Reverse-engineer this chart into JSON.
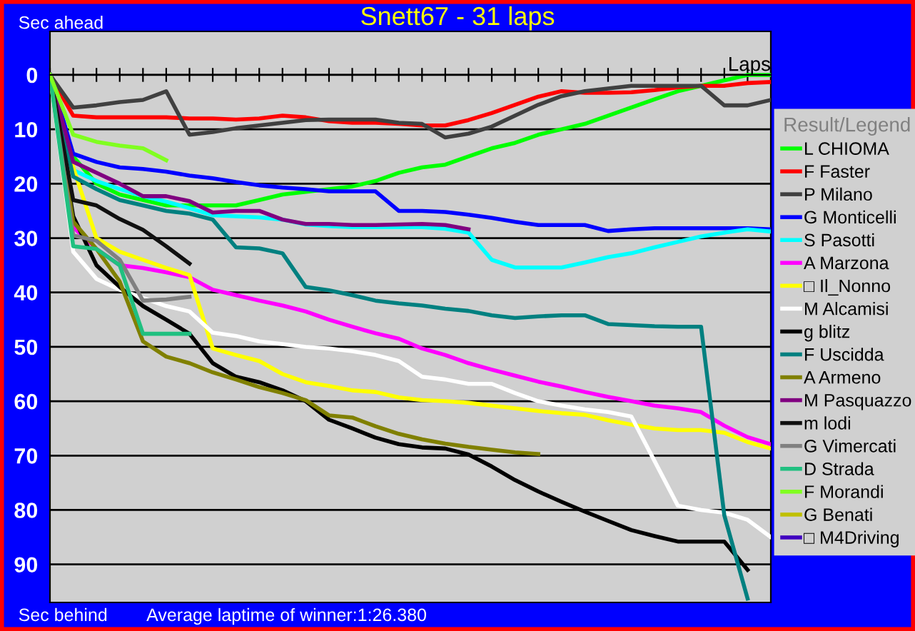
{
  "chart_data": {
    "type": "line",
    "title": "Snett67 - 31 laps",
    "xlabel": "Laps",
    "ylabel": "Sec ahead",
    "legend_title": "Result/Legend",
    "annotations": [
      "Sec behind",
      "Average laptime of winner:1:26.380"
    ],
    "categories": [
      null,
      null,
      null,
      null,
      null,
      null,
      null,
      null,
      null,
      null,
      null,
      null,
      null,
      null,
      null,
      null,
      null,
      null,
      null,
      null,
      null,
      null,
      null,
      null,
      null,
      null,
      null,
      null,
      null,
      null,
      null,
      null
    ],
    "ylim": [
      97,
      -8
    ],
    "yticks": [
      0,
      10,
      20,
      30,
      40,
      50,
      60,
      70,
      80,
      90
    ],
    "grid": "y",
    "legend": "right",
    "marker": "none",
    "line_style": "solid",
    "series": [
      {
        "name": "L CHIOMA",
        "color": "#00ff00",
        "values": [
          0,
          15,
          20,
          22,
          23,
          24,
          24,
          24,
          24,
          23,
          22,
          21.5,
          21,
          20.5,
          19.5,
          18,
          17,
          16.5,
          15,
          13.5,
          12.5,
          11,
          10,
          9,
          7.5,
          6,
          4.5,
          3,
          2,
          1,
          0,
          0
        ]
      },
      {
        "name": "F Faster",
        "color": "#ff0000",
        "values": [
          0,
          7.5,
          7.8,
          7.8,
          7.8,
          7.8,
          8,
          8,
          8.2,
          8,
          7.5,
          7.8,
          8.5,
          8.8,
          8.8,
          9,
          9.3,
          9.3,
          8.3,
          7,
          5.5,
          4,
          3,
          3.3,
          3.3,
          3.2,
          2.8,
          2.3,
          2,
          2,
          1.5,
          1.3
        ]
      },
      {
        "name": "P Milano",
        "color": "#404040",
        "values": [
          0,
          6,
          5.6,
          5,
          4.6,
          3,
          11,
          10.5,
          9.8,
          9.3,
          8.8,
          8.3,
          8.2,
          8.2,
          8.2,
          8.8,
          9,
          11.5,
          10.8,
          9.5,
          7.5,
          5.5,
          3.9,
          3,
          2.5,
          2,
          2,
          2,
          2,
          5.6,
          5.6,
          4.6
        ]
      },
      {
        "name": "G Monticelli",
        "color": "#0000ff",
        "values": [
          0,
          14.5,
          16,
          17,
          17.3,
          17.8,
          18.5,
          19,
          19.7,
          20.3,
          20.7,
          21,
          21.4,
          21.4,
          21.4,
          25,
          25,
          25.2,
          25.7,
          26.3,
          27,
          27.6,
          27.6,
          27.6,
          28.7,
          28.4,
          28.2,
          28.2,
          28.2,
          28.2,
          28.2,
          28.4
        ]
      },
      {
        "name": "S Pasotti",
        "color": "#00ffff",
        "values": [
          0,
          17.5,
          19.5,
          21,
          22.3,
          23.3,
          24.5,
          25.8,
          26,
          26.2,
          26.6,
          27.5,
          27.8,
          28,
          28,
          28,
          28,
          28.3,
          29,
          34,
          35.4,
          35.4,
          35.4,
          34.5,
          33.5,
          32.8,
          31.7,
          30.7,
          29.7,
          29,
          28.4,
          28.8
        ]
      },
      {
        "name": "A Marzona",
        "color": "#ff00ff",
        "values": [
          0,
          28,
          32,
          35,
          35.5,
          36.3,
          37.2,
          39.5,
          40.5,
          41.5,
          42.4,
          43.5,
          45,
          46.3,
          47.5,
          48.5,
          50.3,
          51.5,
          53,
          54.2,
          55.3,
          56.4,
          57.3,
          58.3,
          59.2,
          60,
          60.8,
          61.3,
          62,
          64.5,
          66.6,
          67.9
        ]
      },
      {
        "name": "□ Il_Nonno",
        "color": "#ffff00",
        "values": [
          0,
          17,
          30,
          32.5,
          34,
          35.5,
          36.8,
          50.3,
          51.5,
          52.6,
          55,
          56.5,
          57.2,
          58,
          58.3,
          59.3,
          59.8,
          60,
          60.3,
          60.8,
          61.3,
          61.8,
          62.2,
          62.5,
          63.5,
          64.3,
          65,
          65.3,
          65.3,
          65.8,
          67.5,
          68.7
        ]
      },
      {
        "name": "M Alcamisi",
        "color": "#ffffff",
        "values": [
          0,
          32.5,
          37.5,
          39.5,
          41,
          42.5,
          43.5,
          47.4,
          48,
          49,
          49.5,
          50,
          50.3,
          50.8,
          51.5,
          52.6,
          55.5,
          56,
          56.8,
          56.8,
          58.5,
          60,
          60.8,
          61.5,
          62,
          62.8,
          71,
          79.2,
          80,
          80.5,
          81.8,
          85
        ]
      },
      {
        "name": "g blitz",
        "color": "#000000",
        "values": [
          0,
          26,
          35,
          39,
          42.5,
          45,
          47.6,
          53,
          55.5,
          56.5,
          58,
          60,
          63.4,
          65,
          66.7,
          67.9,
          68.5,
          68.7,
          69.8,
          72,
          74.5,
          76.6,
          78.5,
          80.3,
          82,
          83.7,
          84.8,
          85.8,
          85.8,
          85.8,
          91,
          null
        ]
      },
      {
        "name": "F Uscidda",
        "color": "#008080",
        "values": [
          0,
          18.7,
          21,
          23,
          24,
          25,
          25.5,
          26.6,
          31.7,
          31.9,
          32.8,
          39,
          39.6,
          40.5,
          41.5,
          42,
          42.4,
          43,
          43.4,
          44.2,
          44.7,
          44.4,
          44.2,
          44.2,
          45.8,
          46,
          46.2,
          46.3,
          46.3,
          81,
          96.3,
          null
        ]
      },
      {
        "name": "A Armeno",
        "color": "#808000",
        "values": [
          0,
          27,
          32,
          38,
          49,
          51.8,
          53,
          54.7,
          56,
          57.4,
          58.5,
          59.8,
          62.6,
          63,
          64.6,
          66,
          67,
          67.8,
          68.4,
          68.9,
          69.4,
          69.7,
          null,
          null,
          null,
          null,
          null,
          null,
          null,
          null,
          null,
          null
        ]
      },
      {
        "name": "M Pasquazzo",
        "color": "#800080",
        "values": [
          0,
          16,
          18,
          20,
          22.3,
          22.3,
          23.2,
          25.3,
          25,
          25,
          26.6,
          27.4,
          27.4,
          27.6,
          27.6,
          27.5,
          27.4,
          27.6,
          28.4,
          null,
          null,
          null,
          null,
          null,
          null,
          null,
          null,
          null,
          null,
          null,
          null,
          null
        ]
      },
      {
        "name": "m lodi",
        "color": "#101010",
        "values": [
          0,
          23,
          24,
          26.5,
          28.5,
          31.5,
          34.7,
          null,
          null,
          null,
          null,
          null,
          null,
          null,
          null,
          null,
          null,
          null,
          null,
          null,
          null,
          null,
          null,
          null,
          null,
          null,
          null,
          null,
          null,
          null,
          null,
          null
        ]
      },
      {
        "name": "G Vimercati",
        "color": "#808080",
        "values": [
          0,
          29.5,
          30.5,
          34,
          41.5,
          41.3,
          40.8,
          null,
          null,
          null,
          null,
          null,
          null,
          null,
          null,
          null,
          null,
          null,
          null,
          null,
          null,
          null,
          null,
          null,
          null,
          null,
          null,
          null,
          null,
          null,
          null,
          null
        ]
      },
      {
        "name": "D Strada",
        "color": "#20c080",
        "values": [
          0,
          31.5,
          32,
          35,
          47.6,
          47.6,
          47.6,
          null,
          null,
          null,
          null,
          null,
          null,
          null,
          null,
          null,
          null,
          null,
          null,
          null,
          null,
          null,
          null,
          null,
          null,
          null,
          null,
          null,
          null,
          null,
          null,
          null
        ]
      },
      {
        "name": "F Morandi",
        "color": "#80ff20",
        "values": [
          0,
          11,
          12.3,
          13,
          13.5,
          15.7,
          null,
          null,
          null,
          null,
          null,
          null,
          null,
          null,
          null,
          null,
          null,
          null,
          null,
          null,
          null,
          null,
          null,
          null,
          null,
          null,
          null,
          null,
          null,
          null,
          null,
          null
        ]
      },
      {
        "name": "G Benati",
        "color": "#c0c000",
        "values": [
          null,
          null,
          null,
          null,
          null,
          null,
          null,
          null,
          null,
          null,
          null,
          null,
          null,
          null,
          null,
          null,
          null,
          null,
          null,
          null,
          null,
          null,
          null,
          null,
          null,
          null,
          null,
          null,
          null,
          null,
          null,
          null
        ]
      },
      {
        "name": "□ M4Driving",
        "color": "#4000c0",
        "values": [
          null,
          null,
          null,
          null,
          null,
          null,
          null,
          null,
          null,
          null,
          null,
          null,
          null,
          null,
          null,
          null,
          null,
          null,
          null,
          null,
          null,
          null,
          null,
          null,
          null,
          null,
          null,
          null,
          null,
          null,
          null,
          null
        ]
      }
    ]
  }
}
